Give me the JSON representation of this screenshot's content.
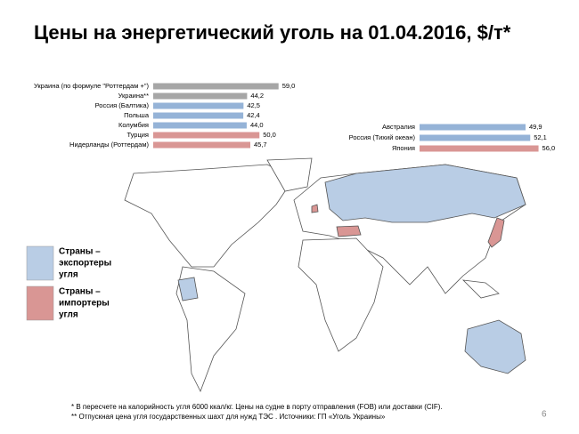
{
  "title": "Цены на энергетический уголь на 01.04.2016, $/т*",
  "chart_data": [
    {
      "type": "bar",
      "categories": [
        "Украина (по формуле \"Роттердам +\")",
        "Украина**",
        "Россия (Балтика)",
        "Польша",
        "Колумбия",
        "Турция",
        "Нидерланды (Роттердам)"
      ],
      "values": [
        59.0,
        44.2,
        42.5,
        42.4,
        44.0,
        50.0,
        45.7
      ],
      "value_labels": [
        "59,0",
        "44,2",
        "42,5",
        "42,4",
        "44,0",
        "50,0",
        "45,7"
      ],
      "colors": [
        "#a6a6a6",
        "#a6a6a6",
        "#95b3d7",
        "#95b3d7",
        "#95b3d7",
        "#d99694",
        "#d99694"
      ]
    },
    {
      "type": "bar",
      "categories": [
        "Австралия",
        "Россия (Тихий океан)",
        "Япония"
      ],
      "values": [
        49.9,
        52.1,
        56.0
      ],
      "value_labels": [
        "49,9",
        "52,1",
        "56,0"
      ],
      "colors": [
        "#95b3d7",
        "#95b3d7",
        "#d99694"
      ]
    }
  ],
  "legend": [
    {
      "lines": [
        "Страны –",
        "экспортеры",
        "угля"
      ],
      "color": "#b9cde5"
    },
    {
      "lines": [
        "Страны –",
        "импортеры",
        "угля"
      ],
      "color": "#d99694"
    }
  ],
  "footnotes": [
    "* В пересчете на калорийность угля 6000 ккал/кг.  Цены на судне в порту отправления (FOB) или доставки (CIF).",
    "** Отпускная цена угля государственных шахт для нужд ТЭС .   Источники: ГП «Уголь Украины»"
  ],
  "page_number": "6"
}
